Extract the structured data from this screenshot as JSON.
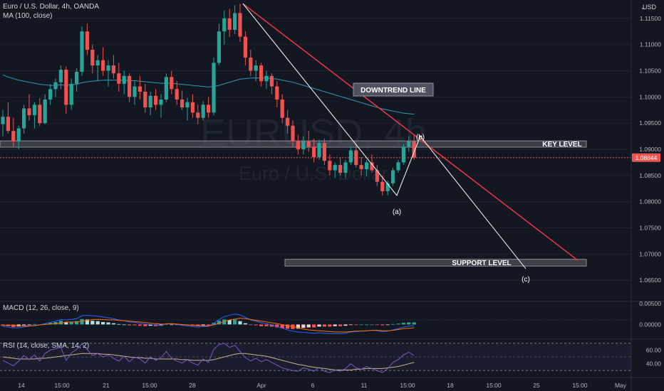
{
  "header": {
    "symbol_line": "Euro / U.S. Dollar, 4h, OANDA",
    "ma_label": "MA (100, close)",
    "macd_label": "MACD (12, 26, close, 9)",
    "rsi_label": "RSI (14, close, SMA, 14, 2)",
    "currency": "USD"
  },
  "watermark": {
    "symbol": "EURUSD, 4h",
    "description": "Euro / U.S. Dollar"
  },
  "price_axis": {
    "ticks": [
      "1.11500",
      "1.11000",
      "1.10500",
      "1.10000",
      "1.09500",
      "1.09000",
      "1.08500",
      "1.08000",
      "1.07500",
      "1.07000",
      "1.06500"
    ],
    "last_price": "1.08844"
  },
  "macd_axis": {
    "ticks": [
      "0.00500",
      "0.00000"
    ]
  },
  "rsi_axis": {
    "ticks": [
      "60.00",
      "40.00"
    ]
  },
  "time_axis": {
    "labels": [
      "14",
      "15:00",
      "21",
      "15:00",
      "28",
      "Apr",
      "6",
      "11",
      "15:00",
      "18",
      "15:00",
      "25",
      "15:00",
      "May"
    ]
  },
  "annotations": {
    "downtrend_line": "DOWNTREND LINE",
    "key_level": "KEY LEVEL",
    "support_level": "SUPPORT LEVEL",
    "wave_a": "(a)",
    "wave_b": "(b)",
    "wave_c": "(c)"
  },
  "colors": {
    "up": "#26a69a",
    "down": "#ef5350",
    "ma": "#2b9bb5",
    "macd": "#2962ff",
    "signal": "#ff6d00",
    "rsi": "#7e57c2",
    "rsi_ma": "#c8b48a",
    "trendline": "#f23645",
    "wave": "#ffffff",
    "background": "#131722"
  },
  "chart_data": {
    "type": "candlestick",
    "symbol": "EURUSD",
    "timeframe": "4h",
    "ylim": [
      1.0615,
      1.1185
    ],
    "candles": [
      [
        1.0948,
        1.0975,
        1.0925,
        1.0962
      ],
      [
        1.0962,
        1.099,
        1.093,
        1.0935
      ],
      [
        1.0935,
        1.096,
        1.0905,
        1.0915
      ],
      [
        1.0915,
        1.0945,
        1.09,
        1.094
      ],
      [
        1.094,
        1.0985,
        1.093,
        1.0978
      ],
      [
        1.0978,
        1.1005,
        1.0955,
        1.0965
      ],
      [
        1.0965,
        1.099,
        1.094,
        1.0985
      ],
      [
        1.0985,
        1.0998,
        1.0945,
        1.095
      ],
      [
        1.095,
        1.1005,
        1.0948,
        1.0995
      ],
      [
        1.0995,
        1.1025,
        1.0985,
        1.1015
      ],
      [
        1.1015,
        1.1035,
        1.1,
        1.1028
      ],
      [
        1.1028,
        1.106,
        1.1015,
        1.1052
      ],
      [
        1.1052,
        1.1058,
        1.0968,
        1.0985
      ],
      [
        1.0985,
        1.1035,
        1.0975,
        1.1025
      ],
      [
        1.1025,
        1.1055,
        1.101,
        1.1048
      ],
      [
        1.1048,
        1.1135,
        1.104,
        1.1125
      ],
      [
        1.1125,
        1.114,
        1.108,
        1.109
      ],
      [
        1.109,
        1.11,
        1.1045,
        1.106
      ],
      [
        1.106,
        1.108,
        1.103,
        1.107
      ],
      [
        1.107,
        1.1095,
        1.104,
        1.105
      ],
      [
        1.105,
        1.107,
        1.102,
        1.106
      ],
      [
        1.106,
        1.108,
        1.1035,
        1.1045
      ],
      [
        1.1045,
        1.1065,
        1.101,
        1.1025
      ],
      [
        1.1025,
        1.105,
        1.1005,
        1.104
      ],
      [
        1.104,
        1.1045,
        1.099,
        1.1
      ],
      [
        1.1,
        1.103,
        1.0985,
        1.102
      ],
      [
        1.102,
        1.104,
        1.0995,
        1.101
      ],
      [
        1.101,
        1.1025,
        1.097,
        1.098
      ],
      [
        1.098,
        1.101,
        1.0965,
        1.1002
      ],
      [
        1.1002,
        1.1015,
        1.0975,
        1.0985
      ],
      [
        1.0985,
        1.1005,
        1.096,
        1.0995
      ],
      [
        1.0995,
        1.1045,
        1.099,
        1.1038
      ],
      [
        1.1038,
        1.105,
        1.1005,
        1.1015
      ],
      [
        1.1015,
        1.103,
        1.0985,
        1.0995
      ],
      [
        1.0995,
        1.1012,
        1.0975,
        1.098
      ],
      [
        1.098,
        1.0998,
        1.0955,
        1.099
      ],
      [
        1.099,
        1.1005,
        1.096,
        1.097
      ],
      [
        1.097,
        1.0985,
        1.0948,
        1.096
      ],
      [
        1.096,
        1.0992,
        1.0955,
        1.0985
      ],
      [
        1.0985,
        1.1,
        1.096,
        1.097
      ],
      [
        1.097,
        1.1075,
        1.0965,
        1.1065
      ],
      [
        1.1065,
        1.114,
        1.106,
        1.1125
      ],
      [
        1.1125,
        1.1165,
        1.11,
        1.115
      ],
      [
        1.115,
        1.1168,
        1.1115,
        1.1128
      ],
      [
        1.1128,
        1.1175,
        1.112,
        1.116
      ],
      [
        1.116,
        1.1178,
        1.1105,
        1.1115
      ],
      [
        1.1115,
        1.1125,
        1.106,
        1.1075
      ],
      [
        1.1075,
        1.109,
        1.104,
        1.105
      ],
      [
        1.105,
        1.107,
        1.103,
        1.106
      ],
      [
        1.106,
        1.1065,
        1.102,
        1.103
      ],
      [
        1.103,
        1.105,
        1.1015,
        1.104
      ],
      [
        1.104,
        1.1045,
        1.1005,
        1.102
      ],
      [
        1.102,
        1.103,
        1.098,
        1.0995
      ],
      [
        1.0995,
        1.1005,
        1.095,
        1.096
      ],
      [
        1.096,
        1.0975,
        1.093,
        1.0945
      ],
      [
        1.0945,
        1.0955,
        1.0905,
        1.0915
      ],
      [
        1.0915,
        1.0928,
        1.089,
        1.09
      ],
      [
        1.09,
        1.0925,
        1.089,
        1.0915
      ],
      [
        1.0915,
        1.0935,
        1.0895,
        1.0905
      ],
      [
        1.0905,
        1.092,
        1.0875,
        1.0885
      ],
      [
        1.0885,
        1.0918,
        1.088,
        1.0912
      ],
      [
        1.0912,
        1.092,
        1.087,
        1.0878
      ],
      [
        1.0878,
        1.089,
        1.085,
        1.086
      ],
      [
        1.086,
        1.0875,
        1.0845,
        1.087
      ],
      [
        1.087,
        1.0885,
        1.085,
        1.0855
      ],
      [
        1.0855,
        1.088,
        1.0845,
        1.0875
      ],
      [
        1.0875,
        1.0905,
        1.087,
        1.0898
      ],
      [
        1.0898,
        1.091,
        1.0865,
        1.087
      ],
      [
        1.087,
        1.0885,
        1.085,
        1.0862
      ],
      [
        1.0862,
        1.088,
        1.0848,
        1.0875
      ],
      [
        1.0875,
        1.089,
        1.0855,
        1.086
      ],
      [
        1.086,
        1.087,
        1.083,
        1.0838
      ],
      [
        1.0838,
        1.085,
        1.0812,
        1.082
      ],
      [
        1.082,
        1.084,
        1.0812,
        1.0835
      ],
      [
        1.0835,
        1.0865,
        1.083,
        1.086
      ],
      [
        1.086,
        1.088,
        1.0855,
        1.0875
      ],
      [
        1.0875,
        1.091,
        1.087,
        1.0905
      ],
      [
        1.0905,
        1.0925,
        1.0895,
        1.0915
      ],
      [
        1.0915,
        1.0928,
        1.088,
        1.0884
      ]
    ],
    "ma100": [
      1.1042,
      1.1038,
      1.1035,
      1.1032,
      1.103,
      1.1028,
      1.1026,
      1.1024,
      1.1023,
      1.1022,
      1.1022,
      1.1023,
      1.1022,
      1.1023,
      1.1024,
      1.1027,
      1.1029,
      1.103,
      1.1031,
      1.1032,
      1.1032,
      1.1032,
      1.1032,
      1.1032,
      1.1031,
      1.1031,
      1.103,
      1.1029,
      1.1028,
      1.1027,
      1.1026,
      1.1026,
      1.1026,
      1.1025,
      1.1024,
      1.1023,
      1.1022,
      1.1021,
      1.102,
      1.1019,
      1.102,
      1.1022,
      1.1025,
      1.1028,
      1.1031,
      1.1034,
      1.1035,
      1.1036,
      1.1036,
      1.1036,
      1.1036,
      1.1035,
      1.1034,
      1.1032,
      1.103,
      1.1028,
      1.1025,
      1.1022,
      1.1019,
      1.1016,
      1.1013,
      1.101,
      1.1007,
      1.1004,
      1.1001,
      1.0998,
      1.0995,
      1.0992,
      1.0989,
      1.0986,
      1.0983,
      1.098,
      1.0977,
      1.0975,
      1.0973,
      1.0971,
      1.0969,
      1.0968,
      1.0967
    ],
    "drawings": {
      "key_level": [
        1.0916,
        1.0904
      ],
      "support_level": [
        1.069,
        1.0677
      ],
      "downtrend_line": {
        "from": 1.1178,
        "to": 1.0688
      },
      "wave_points": [
        1.1178,
        1.0812,
        1.0925,
        1.0672
      ]
    },
    "macd_ylim": [
      -0.003,
      0.0052
    ],
    "macd_hist": [
      -0.0003,
      -0.0004,
      -0.0006,
      -0.0005,
      -0.0002,
      -0.0001,
      0.0001,
      0.0,
      0.0002,
      0.0004,
      0.0006,
      0.0009,
      0.0005,
      0.0006,
      0.0008,
      0.0013,
      0.0012,
      0.0009,
      0.0008,
      0.0006,
      0.0005,
      0.0003,
      0.0001,
      0.0,
      -0.0002,
      -0.0002,
      -0.0003,
      -0.0004,
      -0.0003,
      -0.0004,
      -0.0003,
      0.0001,
      0.0,
      -0.0001,
      -0.0002,
      -0.0002,
      -0.0003,
      -0.0004,
      -0.0002,
      -0.0002,
      0.0004,
      0.0009,
      0.0012,
      0.0011,
      0.0012,
      0.0008,
      0.0003,
      -0.0001,
      -0.0002,
      -0.0004,
      -0.0004,
      -0.0005,
      -0.0007,
      -0.0009,
      -0.001,
      -0.0011,
      -0.001,
      -0.0008,
      -0.0007,
      -0.0007,
      -0.0005,
      -0.0005,
      -0.0005,
      -0.0004,
      -0.0004,
      -0.0003,
      -0.0001,
      -0.0001,
      0.0,
      0.0,
      0.0,
      -0.0001,
      -0.0002,
      -0.0001,
      0.0001,
      0.0002,
      0.0004,
      0.0005,
      0.0005
    ],
    "macd_line": [
      -0.0005,
      -0.0006,
      -0.0008,
      -0.0008,
      -0.0006,
      -0.0004,
      -0.0002,
      -0.0001,
      0.0002,
      0.0005,
      0.0008,
      0.0012,
      0.0011,
      0.0012,
      0.0014,
      0.0021,
      0.0022,
      0.0021,
      0.002,
      0.0018,
      0.0016,
      0.0014,
      0.0011,
      0.0009,
      0.0006,
      0.0005,
      0.0003,
      0.0001,
      0.0,
      -0.0002,
      -0.0002,
      0.0002,
      0.0002,
      0.0,
      -0.0002,
      -0.0003,
      -0.0005,
      -0.0006,
      -0.0005,
      -0.0005,
      0.0003,
      0.0012,
      0.0019,
      0.0022,
      0.0025,
      0.0023,
      0.0017,
      0.0011,
      0.0008,
      0.0004,
      0.0002,
      -0.0001,
      -0.0005,
      -0.0009,
      -0.0013,
      -0.0016,
      -0.0018,
      -0.0019,
      -0.002,
      -0.0021,
      -0.002,
      -0.0021,
      -0.0022,
      -0.0022,
      -0.0022,
      -0.0021,
      -0.0018,
      -0.0017,
      -0.0016,
      -0.0015,
      -0.0014,
      -0.0015,
      -0.0017,
      -0.0016,
      -0.0013,
      -0.001,
      -0.0006,
      -0.0004,
      -0.0003
    ],
    "macd_signal": [
      -0.0002,
      -0.0002,
      -0.0002,
      -0.0003,
      -0.0004,
      -0.0003,
      -0.0003,
      -0.0001,
      0.0,
      0.0001,
      0.0002,
      0.0003,
      0.0006,
      0.0006,
      0.0006,
      0.0008,
      0.001,
      0.0012,
      0.0012,
      0.0012,
      0.0011,
      0.0011,
      0.001,
      0.0009,
      0.0008,
      0.0007,
      0.0006,
      0.0005,
      0.0003,
      0.0002,
      0.0001,
      0.0001,
      0.0002,
      0.0001,
      0.0,
      -0.0001,
      -0.0002,
      -0.0002,
      -0.0003,
      -0.0003,
      -0.0001,
      0.0003,
      0.0007,
      0.0011,
      0.0013,
      0.0015,
      0.0014,
      0.0012,
      0.001,
      0.0008,
      0.0006,
      0.0004,
      0.0002,
      0.0,
      -0.0003,
      -0.0005,
      -0.0008,
      -0.0011,
      -0.0013,
      -0.0014,
      -0.0015,
      -0.0016,
      -0.0017,
      -0.0018,
      -0.0018,
      -0.0018,
      -0.0017,
      -0.0016,
      -0.0016,
      -0.0015,
      -0.0014,
      -0.0014,
      -0.0015,
      -0.0015,
      -0.0014,
      -0.0012,
      -0.001,
      -0.0009,
      -0.0008
    ],
    "rsi_ylim": [
      22,
      74
    ],
    "rsi": [
      45,
      41,
      37,
      44,
      52,
      46,
      53,
      44,
      55,
      60,
      62,
      64,
      45,
      56,
      61,
      69,
      61,
      52,
      55,
      50,
      53,
      48,
      44,
      51,
      43,
      50,
      47,
      41,
      50,
      45,
      49,
      58,
      48,
      44,
      41,
      46,
      41,
      38,
      47,
      42,
      61,
      68,
      70,
      64,
      67,
      58,
      49,
      44,
      48,
      43,
      46,
      42,
      38,
      34,
      32,
      30,
      29,
      34,
      32,
      29,
      35,
      29,
      27,
      31,
      29,
      33,
      40,
      34,
      32,
      36,
      33,
      30,
      27,
      33,
      42,
      46,
      53,
      57,
      52
    ],
    "rsi_ma": [
      50,
      49,
      48,
      47,
      47,
      47,
      47,
      48,
      48,
      49,
      50,
      51,
      52,
      53,
      54,
      55,
      55,
      55,
      55,
      54,
      54,
      53,
      52,
      51,
      50,
      49,
      49,
      48,
      48,
      47,
      47,
      47,
      47,
      47,
      46,
      46,
      45,
      45,
      45,
      45,
      46,
      48,
      50,
      52,
      54,
      55,
      55,
      54,
      53,
      52,
      51,
      49,
      47,
      45,
      43,
      41,
      39,
      38,
      36,
      35,
      34,
      33,
      32,
      31,
      31,
      31,
      31,
      32,
      32,
      33,
      33,
      33,
      33,
      34,
      35,
      36,
      38,
      40,
      42
    ]
  }
}
